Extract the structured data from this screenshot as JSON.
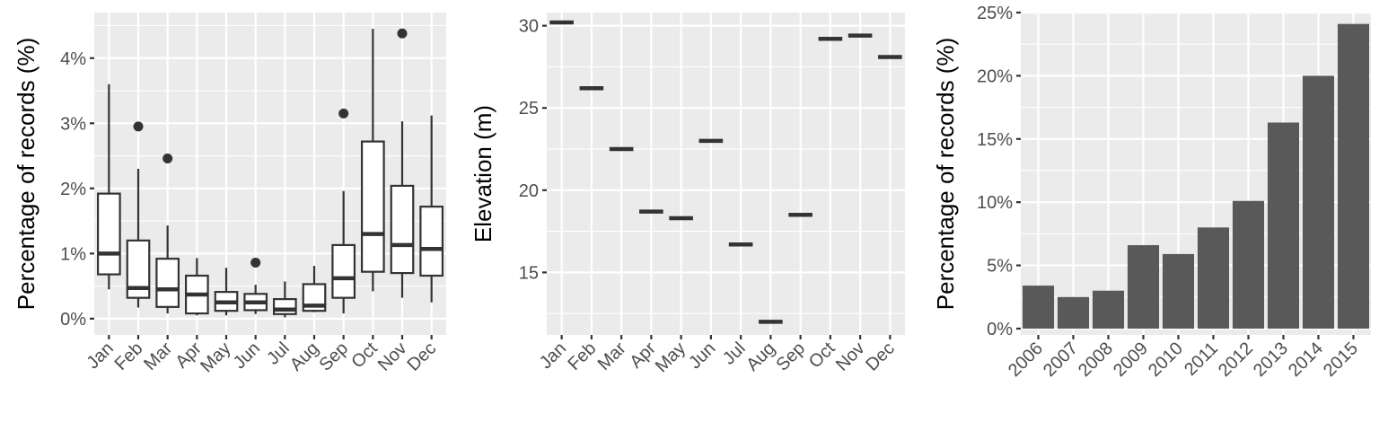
{
  "chart_data": [
    {
      "type": "box",
      "xlabel": "",
      "ylabel": "Percentage of records (%)",
      "ylim": [
        -0.25,
        4.7
      ],
      "y_ticks": [
        "0%",
        "1%",
        "2%",
        "3%",
        "4%"
      ],
      "y_tick_values": [
        0,
        1,
        2,
        3,
        4
      ],
      "categories": [
        "Jan",
        "Feb",
        "Mar",
        "Apr",
        "May",
        "Jun",
        "Jul",
        "Aug",
        "Sep",
        "Oct",
        "Nov",
        "Dec"
      ],
      "boxes": [
        {
          "low": 0.45,
          "q1": 0.68,
          "median": 1.0,
          "q3": 1.92,
          "high": 3.6,
          "outliers": []
        },
        {
          "low": 0.17,
          "q1": 0.32,
          "median": 0.47,
          "q3": 1.2,
          "high": 2.3,
          "outliers": [
            2.95
          ]
        },
        {
          "low": 0.08,
          "q1": 0.18,
          "median": 0.45,
          "q3": 0.92,
          "high": 1.43,
          "outliers": [
            2.46
          ]
        },
        {
          "low": 0.05,
          "q1": 0.08,
          "median": 0.37,
          "q3": 0.66,
          "high": 0.93,
          "outliers": []
        },
        {
          "low": 0.05,
          "q1": 0.12,
          "median": 0.25,
          "q3": 0.41,
          "high": 0.78,
          "outliers": []
        },
        {
          "low": 0.07,
          "q1": 0.13,
          "median": 0.25,
          "q3": 0.38,
          "high": 0.52,
          "outliers": [
            0.86
          ]
        },
        {
          "low": 0.02,
          "q1": 0.07,
          "median": 0.14,
          "q3": 0.3,
          "high": 0.57,
          "outliers": []
        },
        {
          "low": 0.1,
          "q1": 0.12,
          "median": 0.2,
          "q3": 0.53,
          "high": 0.81,
          "outliers": []
        },
        {
          "low": 0.08,
          "q1": 0.32,
          "median": 0.62,
          "q3": 1.13,
          "high": 1.96,
          "outliers": [
            3.15
          ]
        },
        {
          "low": 0.42,
          "q1": 0.72,
          "median": 1.3,
          "q3": 2.72,
          "high": 4.45,
          "outliers": []
        },
        {
          "low": 0.32,
          "q1": 0.7,
          "median": 1.13,
          "q3": 2.04,
          "high": 3.03,
          "outliers": [
            4.38
          ]
        },
        {
          "low": 0.25,
          "q1": 0.66,
          "median": 1.07,
          "q3": 1.72,
          "high": 3.12,
          "outliers": []
        }
      ]
    },
    {
      "type": "scatter",
      "xlabel": "",
      "ylabel": "Elevation (m)",
      "ylim": [
        11.2,
        30.8
      ],
      "y_ticks": [
        "15",
        "20",
        "25",
        "30"
      ],
      "y_tick_values": [
        15,
        20,
        25,
        30
      ],
      "categories": [
        "Jan",
        "Feb",
        "Mar",
        "Apr",
        "May",
        "Jun",
        "Jul",
        "Aug",
        "Sep",
        "Oct",
        "Nov",
        "Dec"
      ],
      "values": [
        30.2,
        26.2,
        22.5,
        18.7,
        18.3,
        23.0,
        16.7,
        12.0,
        18.5,
        29.2,
        29.4,
        28.1
      ]
    },
    {
      "type": "bar",
      "xlabel": "",
      "ylabel": "Percentage of records (%)",
      "ylim": [
        -0.5,
        25.0
      ],
      "y_ticks": [
        "0%",
        "5%",
        "10%",
        "15%",
        "20%",
        "25%"
      ],
      "y_tick_values": [
        0,
        5,
        10,
        15,
        20,
        25
      ],
      "categories": [
        "2006",
        "2007",
        "2008",
        "2009",
        "2010",
        "2011",
        "2012",
        "2013",
        "2014",
        "2015"
      ],
      "values": [
        3.4,
        2.5,
        3.0,
        6.6,
        5.9,
        8.0,
        10.1,
        16.3,
        20.0,
        24.1
      ]
    }
  ]
}
